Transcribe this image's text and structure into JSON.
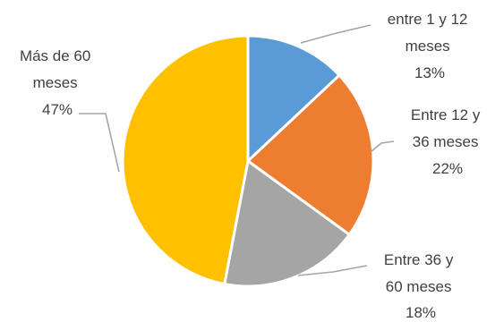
{
  "chart_data": {
    "type": "pie",
    "title": "",
    "start_angle_deg": 0,
    "direction": "clockwise",
    "legend": "none",
    "slices": [
      {
        "label_lines": [
          "entre 1 y 12",
          "meses"
        ],
        "pct_label": "13%",
        "value": 13,
        "color": "#5b9bd5"
      },
      {
        "label_lines": [
          "Entre 12 y",
          "36 meses"
        ],
        "pct_label": "22%",
        "value": 22,
        "color": "#ed7d31"
      },
      {
        "label_lines": [
          "Entre 36 y",
          "60 meses"
        ],
        "pct_label": "18%",
        "value": 18,
        "color": "#a5a5a5"
      },
      {
        "label_lines": [
          "Más de 60",
          "meses"
        ],
        "pct_label": "47%",
        "value": 47,
        "color": "#ffc000"
      }
    ]
  }
}
